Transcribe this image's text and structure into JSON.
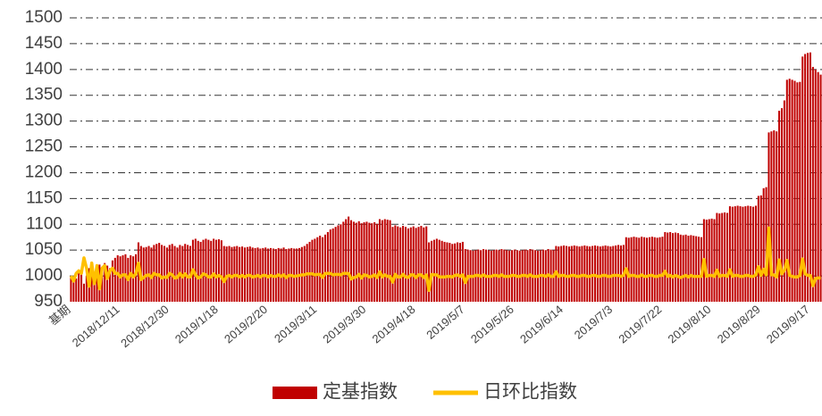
{
  "chart_data": {
    "type": "bar_line",
    "categories": [
      "基期",
      null,
      null,
      null,
      null,
      null,
      null,
      null,
      null,
      null,
      null,
      null,
      null,
      null,
      null,
      null,
      null,
      null,
      null,
      "2018/12/11",
      null,
      null,
      null,
      null,
      null,
      null,
      null,
      null,
      null,
      null,
      null,
      null,
      null,
      null,
      null,
      null,
      null,
      null,
      "2018/12/30",
      null,
      null,
      null,
      null,
      null,
      null,
      null,
      null,
      null,
      null,
      null,
      null,
      null,
      null,
      null,
      null,
      null,
      null,
      "2019/1/18",
      null,
      null,
      null,
      null,
      null,
      null,
      null,
      null,
      null,
      null,
      null,
      null,
      null,
      null,
      null,
      null,
      null,
      null,
      "2019/2/20",
      null,
      null,
      null,
      null,
      null,
      null,
      null,
      null,
      null,
      null,
      null,
      null,
      null,
      null,
      null,
      null,
      null,
      null,
      "2019/3/11",
      null,
      null,
      null,
      null,
      null,
      null,
      null,
      null,
      null,
      null,
      null,
      null,
      null,
      null,
      null,
      null,
      null,
      null,
      "2019/3/30",
      null,
      null,
      null,
      null,
      null,
      null,
      null,
      null,
      null,
      null,
      null,
      null,
      null,
      null,
      null,
      null,
      null,
      null,
      "2019/4/18",
      null,
      null,
      null,
      null,
      null,
      null,
      null,
      null,
      null,
      null,
      null,
      null,
      null,
      null,
      null,
      null,
      null,
      null,
      "2019/5/7",
      null,
      null,
      null,
      null,
      null,
      null,
      null,
      null,
      null,
      null,
      null,
      null,
      null,
      null,
      null,
      null,
      null,
      null,
      "2019/5/26",
      null,
      null,
      null,
      null,
      null,
      null,
      null,
      null,
      null,
      null,
      null,
      null,
      null,
      null,
      null,
      null,
      null,
      null,
      "2019/6/14",
      null,
      null,
      null,
      null,
      null,
      null,
      null,
      null,
      null,
      null,
      null,
      null,
      null,
      null,
      null,
      null,
      null,
      null,
      "2019/7/3",
      null,
      null,
      null,
      null,
      null,
      null,
      null,
      null,
      null,
      null,
      null,
      null,
      null,
      null,
      null,
      null,
      null,
      null,
      "2019/7/22",
      null,
      null,
      null,
      null,
      null,
      null,
      null,
      null,
      null,
      null,
      null,
      null,
      null,
      null,
      null,
      null,
      null,
      null,
      "2019/8/10",
      null,
      null,
      null,
      null,
      null,
      null,
      null,
      null,
      null,
      null,
      null,
      null,
      null,
      null,
      null,
      null,
      null,
      null,
      "2019/8/29",
      null,
      null,
      null,
      null,
      null,
      null,
      null,
      null,
      null,
      null,
      null,
      null,
      null,
      null,
      null,
      null,
      null,
      null,
      "2019/9/17",
      null,
      null,
      null,
      null
    ],
    "series": [
      {
        "name": "定基指数",
        "color": "#c00000",
        "type": "bar",
        "values": [
          1000,
          990,
          995,
          1005,
          1010,
          985,
          1000,
          1015,
          1020,
          1005,
          1018,
          1022,
          1010,
          1025,
          1020,
          1015,
          1030,
          1035,
          1040,
          1038,
          1040,
          1042,
          1035,
          1040,
          1038,
          1042,
          1065,
          1058,
          1055,
          1056,
          1058,
          1055,
          1060,
          1062,
          1064,
          1060,
          1058,
          1055,
          1060,
          1062,
          1058,
          1055,
          1060,
          1058,
          1062,
          1060,
          1058,
          1070,
          1072,
          1068,
          1066,
          1070,
          1072,
          1070,
          1068,
          1072,
          1070,
          1071,
          1069,
          1058,
          1057,
          1058,
          1056,
          1057,
          1058,
          1056,
          1057,
          1055,
          1056,
          1057,
          1055,
          1054,
          1055,
          1053,
          1054,
          1055,
          1053,
          1054,
          1053,
          1052,
          1054,
          1053,
          1055,
          1052,
          1053,
          1054,
          1053,
          1053,
          1054,
          1056,
          1058,
          1062,
          1066,
          1070,
          1072,
          1075,
          1078,
          1075,
          1080,
          1085,
          1090,
          1092,
          1095,
          1098,
          1100,
          1105,
          1110,
          1115,
          1108,
          1105,
          1103,
          1106,
          1102,
          1104,
          1105,
          1103,
          1102,
          1104,
          1101,
          1110,
          1108,
          1110,
          1109,
          1108,
          1095,
          1098,
          1096,
          1094,
          1097,
          1095,
          1092,
          1094,
          1096,
          1093,
          1095,
          1097,
          1094,
          1096,
          1065,
          1068,
          1070,
          1072,
          1070,
          1068,
          1066,
          1065,
          1064,
          1062,
          1063,
          1065,
          1064,
          1066,
          1052,
          1051,
          1050,
          1049,
          1050,
          1051,
          1050,
          1052,
          1051,
          1050,
          1049,
          1050,
          1051,
          1050,
          1052,
          1051,
          1050,
          1049,
          1050,
          1051,
          1050,
          1049,
          1050,
          1051,
          1050,
          1052,
          1051,
          1050,
          1049,
          1050,
          1051,
          1050,
          1052,
          1051,
          1050,
          1058,
          1057,
          1058,
          1059,
          1058,
          1057,
          1058,
          1059,
          1058,
          1057,
          1058,
          1059,
          1058,
          1057,
          1058,
          1059,
          1058,
          1057,
          1058,
          1059,
          1058,
          1057,
          1058,
          1059,
          1060,
          1059,
          1060,
          1075,
          1074,
          1075,
          1076,
          1075,
          1074,
          1076,
          1075,
          1074,
          1075,
          1076,
          1075,
          1074,
          1075,
          1076,
          1085,
          1084,
          1085,
          1083,
          1084,
          1083,
          1080,
          1079,
          1080,
          1078,
          1079,
          1078,
          1077,
          1076,
          1075,
          1110,
          1109,
          1110,
          1111,
          1110,
          1122,
          1121,
          1122,
          1123,
          1122,
          1135,
          1134,
          1135,
          1136,
          1135,
          1134,
          1135,
          1136,
          1135,
          1134,
          1136,
          1155,
          1156,
          1170,
          1172,
          1278,
          1280,
          1282,
          1280,
          1320,
          1325,
          1340,
          1380,
          1382,
          1380,
          1378,
          1375,
          1376,
          1425,
          1430,
          1432,
          1433,
          1405,
          1400,
          1395,
          1390
        ]
      },
      {
        "name": "日环比指数",
        "color": "#ffc000",
        "type": "line",
        "values": [
          1000,
          990,
          1005,
          1010,
          1005,
          1035,
          1015,
          980,
          1025,
          985,
          1020,
          975,
          1015,
          1020,
          995,
          1010,
          1015,
          1005,
          1005,
          998,
          1002,
          1002,
          993,
          1005,
          998,
          1004,
          1025,
          993,
          997,
          1001,
          1002,
          997,
          1005,
          1002,
          1002,
          996,
          998,
          997,
          1005,
          1002,
          996,
          997,
          1005,
          998,
          1004,
          998,
          998,
          1012,
          1002,
          996,
          998,
          1004,
          1002,
          998,
          998,
          1004,
          998,
          1001,
          998,
          989,
          999,
          1001,
          998,
          1001,
          1001,
          998,
          1001,
          998,
          1001,
          1001,
          998,
          999,
          1001,
          998,
          1001,
          1001,
          998,
          1001,
          999,
          999,
          1002,
          999,
          1002,
          997,
          1001,
          1001,
          999,
          1000,
          1001,
          1002,
          1002,
          1004,
          1004,
          1004,
          1002,
          1003,
          1003,
          997,
          1005,
          1005,
          1005,
          1002,
          1003,
          1003,
          1002,
          1005,
          1005,
          1005,
          994,
          997,
          998,
          1003,
          996,
          1002,
          1001,
          998,
          999,
          1002,
          997,
          1008,
          998,
          1002,
          999,
          999,
          988,
          1003,
          998,
          998,
          1003,
          998,
          997,
          1002,
          1002,
          997,
          1002,
          1002,
          997,
          1002,
          972,
          1003,
          1002,
          1002,
          998,
          998,
          998,
          999,
          999,
          998,
          1001,
          1002,
          999,
          1002,
          987,
          999,
          999,
          999,
          1001,
          1001,
          999,
          1002,
          999,
          999,
          999,
          1001,
          1001,
          999,
          1002,
          999,
          999,
          999,
          1001,
          1001,
          999,
          999,
          1001,
          1001,
          999,
          1002,
          999,
          999,
          999,
          1001,
          1001,
          999,
          1002,
          999,
          999,
          1008,
          999,
          1001,
          1001,
          999,
          999,
          1001,
          1001,
          999,
          999,
          1001,
          1001,
          999,
          999,
          1001,
          1001,
          999,
          999,
          1001,
          1001,
          999,
          999,
          1001,
          1001,
          1001,
          999,
          1001,
          1014,
          999,
          1001,
          1001,
          999,
          999,
          1002,
          999,
          999,
          1001,
          1001,
          999,
          999,
          1001,
          1001,
          1009,
          999,
          1001,
          998,
          1001,
          999,
          997,
          999,
          1001,
          998,
          1001,
          999,
          999,
          999,
          999,
          1032,
          999,
          1001,
          1001,
          999,
          1011,
          999,
          1001,
          1001,
          999,
          1012,
          999,
          1001,
          1001,
          999,
          999,
          1001,
          1001,
          999,
          999,
          1002,
          1018,
          1001,
          1013,
          1002,
          1093,
          1002,
          1002,
          998,
          1031,
          1004,
          1011,
          1030,
          1001,
          999,
          998,
          998,
          1001,
          1033,
          1004,
          1001,
          1001,
          981,
          995,
          996,
          996
        ]
      }
    ],
    "ylim": [
      950,
      1500
    ],
    "yticks": [
      950,
      1000,
      1050,
      1100,
      1150,
      1200,
      1250,
      1300,
      1350,
      1400,
      1450,
      1500
    ],
    "grid": true,
    "legend": "bottom"
  }
}
